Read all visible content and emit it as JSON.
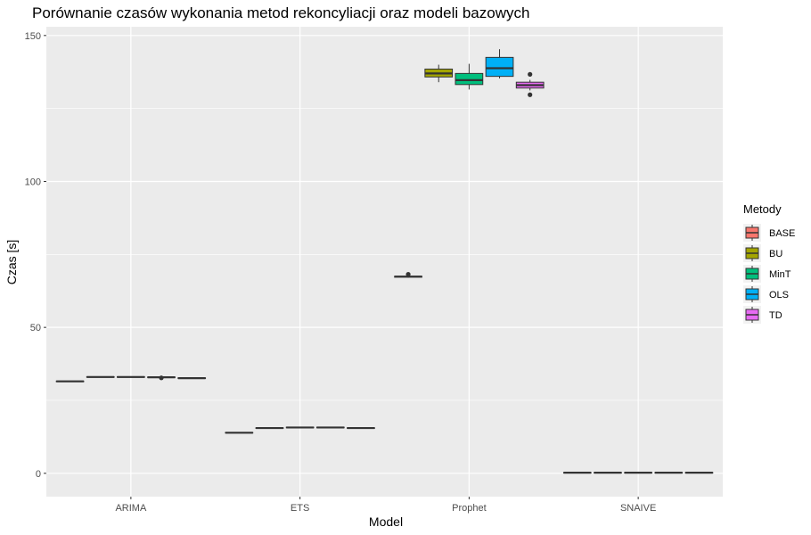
{
  "chart_data": {
    "type": "boxplot",
    "title": "Porównanie czasów wykonania metod rekoncyliacji oraz modeli bazowych",
    "xlabel": "Model",
    "ylabel": "Czas [s]",
    "categories": [
      "ARIMA",
      "ETS",
      "Prophet",
      "SNAIVE"
    ],
    "ylim": [
      -8,
      153
    ],
    "yticks": [
      0,
      50,
      100,
      150
    ],
    "grid": true,
    "legend": {
      "title": "Metody",
      "position": "right",
      "entries": [
        {
          "name": "BASE",
          "color": "#F8766D"
        },
        {
          "name": "BU",
          "color": "#A3A500"
        },
        {
          "name": "MinT",
          "color": "#00BF7D"
        },
        {
          "name": "OLS",
          "color": "#00B0F6"
        },
        {
          "name": "TD",
          "color": "#E76BF3"
        }
      ]
    },
    "series": [
      {
        "name": "BASE",
        "boxes": [
          {
            "category": "ARIMA",
            "min": 31.3,
            "q1": 31.4,
            "median": 31.5,
            "q3": 31.6,
            "max": 31.7,
            "outliers": []
          },
          {
            "category": "ETS",
            "min": 13.7,
            "q1": 13.8,
            "median": 13.9,
            "q3": 14.0,
            "max": 14.1,
            "outliers": []
          },
          {
            "category": "Prophet",
            "min": 67.0,
            "q1": 67.2,
            "median": 67.4,
            "q3": 67.5,
            "max": 67.6,
            "outliers": [
              68.2
            ]
          },
          {
            "category": "SNAIVE",
            "min": 0.1,
            "q1": 0.15,
            "median": 0.2,
            "q3": 0.25,
            "max": 0.3,
            "outliers": []
          }
        ]
      },
      {
        "name": "BU",
        "boxes": [
          {
            "category": "ARIMA",
            "min": 32.8,
            "q1": 32.9,
            "median": 33.0,
            "q3": 33.1,
            "max": 33.2,
            "outliers": []
          },
          {
            "category": "ETS",
            "min": 15.3,
            "q1": 15.4,
            "median": 15.5,
            "q3": 15.6,
            "max": 15.7,
            "outliers": []
          },
          {
            "category": "Prophet",
            "min": 134.0,
            "q1": 135.8,
            "median": 137.0,
            "q3": 138.5,
            "max": 140.0,
            "outliers": []
          },
          {
            "category": "SNAIVE",
            "min": 0.1,
            "q1": 0.15,
            "median": 0.2,
            "q3": 0.25,
            "max": 0.3,
            "outliers": []
          }
        ]
      },
      {
        "name": "MinT",
        "boxes": [
          {
            "category": "ARIMA",
            "min": 32.8,
            "q1": 32.9,
            "median": 33.0,
            "q3": 33.1,
            "max": 33.2,
            "outliers": []
          },
          {
            "category": "ETS",
            "min": 15.5,
            "q1": 15.6,
            "median": 15.7,
            "q3": 15.8,
            "max": 15.9,
            "outliers": []
          },
          {
            "category": "Prophet",
            "min": 131.5,
            "q1": 133.2,
            "median": 134.7,
            "q3": 137.0,
            "max": 140.3,
            "outliers": []
          },
          {
            "category": "SNAIVE",
            "min": 0.1,
            "q1": 0.15,
            "median": 0.2,
            "q3": 0.25,
            "max": 0.3,
            "outliers": []
          }
        ]
      },
      {
        "name": "OLS",
        "boxes": [
          {
            "category": "ARIMA",
            "min": 32.7,
            "q1": 32.8,
            "median": 32.9,
            "q3": 33.0,
            "max": 33.1,
            "outliers": [
              32.7
            ]
          },
          {
            "category": "ETS",
            "min": 15.5,
            "q1": 15.6,
            "median": 15.7,
            "q3": 15.8,
            "max": 15.9,
            "outliers": []
          },
          {
            "category": "Prophet",
            "min": 135.3,
            "q1": 136.0,
            "median": 138.8,
            "q3": 142.5,
            "max": 145.3,
            "outliers": []
          },
          {
            "category": "SNAIVE",
            "min": 0.1,
            "q1": 0.15,
            "median": 0.2,
            "q3": 0.25,
            "max": 0.3,
            "outliers": []
          }
        ]
      },
      {
        "name": "TD",
        "boxes": [
          {
            "category": "ARIMA",
            "min": 32.4,
            "q1": 32.5,
            "median": 32.6,
            "q3": 32.7,
            "max": 32.8,
            "outliers": []
          },
          {
            "category": "ETS",
            "min": 15.3,
            "q1": 15.4,
            "median": 15.5,
            "q3": 15.6,
            "max": 15.7,
            "outliers": []
          },
          {
            "category": "Prophet",
            "min": 131.2,
            "q1": 132.0,
            "median": 133.0,
            "q3": 134.0,
            "max": 134.8,
            "outliers": [
              129.7,
              136.7
            ]
          },
          {
            "category": "SNAIVE",
            "min": 0.1,
            "q1": 0.15,
            "median": 0.2,
            "q3": 0.25,
            "max": 0.3,
            "outliers": []
          }
        ]
      }
    ]
  }
}
